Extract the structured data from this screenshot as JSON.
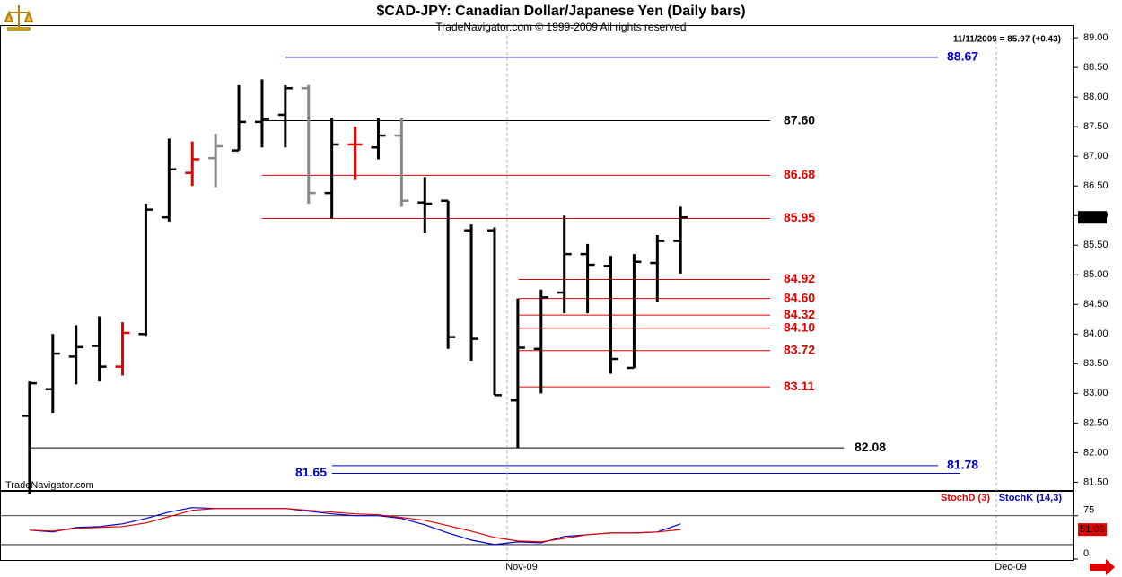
{
  "chart_data": [
    {
      "type": "ohlc",
      "title": "$CAD-JPY:  Canadian Dollar/Japanese Yen  (Daily bars)",
      "subtitle": "TradeNavigator.com © 1999-2009 All rights reserved",
      "watermark": "TradeNavigator.com",
      "quote": "11/11/2009 = 85.97 (+0.43)",
      "categories": [
        null,
        null,
        null,
        null,
        null,
        null,
        null,
        null,
        null,
        null,
        null,
        null,
        null,
        null,
        null,
        null,
        null,
        null,
        null,
        null,
        null,
        null,
        null,
        null,
        null,
        null,
        null,
        null,
        null
      ],
      "open": [
        82.62,
        83.07,
        83.62,
        83.8,
        83.45,
        84.0,
        85.97,
        86.72,
        86.97,
        87.1,
        87.58,
        87.7,
        88.15,
        86.38,
        87.2,
        87.15,
        87.35,
        86.22,
        86.25,
        85.75,
        85.75,
        82.88,
        83.75,
        84.7,
        85.35,
        85.15,
        83.43,
        85.2,
        85.57
      ],
      "high": [
        83.2,
        84.0,
        84.15,
        84.3,
        84.2,
        86.2,
        87.3,
        87.25,
        87.38,
        88.2,
        88.3,
        88.2,
        88.2,
        87.65,
        87.5,
        87.65,
        87.65,
        86.65,
        86.25,
        85.85,
        85.8,
        84.6,
        84.75,
        86.0,
        85.52,
        85.32,
        85.35,
        85.67,
        86.15
      ],
      "low": [
        81.3,
        82.67,
        83.15,
        83.2,
        83.3,
        83.97,
        85.9,
        86.5,
        86.48,
        87.1,
        87.15,
        87.15,
        86.2,
        85.95,
        86.6,
        86.95,
        86.15,
        85.7,
        83.75,
        83.55,
        82.97,
        82.08,
        83.0,
        84.35,
        84.35,
        83.33,
        83.43,
        84.55,
        85.02
      ],
      "close": [
        83.17,
        83.67,
        83.78,
        83.45,
        84.02,
        86.1,
        86.78,
        86.95,
        87.17,
        87.58,
        87.63,
        88.15,
        86.38,
        87.2,
        87.2,
        87.35,
        86.25,
        86.2,
        83.95,
        83.92,
        82.97,
        83.77,
        84.62,
        85.35,
        85.17,
        83.58,
        85.22,
        85.57,
        85.97
      ],
      "bar_colors": [
        "#000",
        "#000",
        "#000",
        "#000",
        "#e00000",
        "#000",
        "#000",
        "#e00000",
        "#888888",
        "#000",
        "#000",
        "#000",
        "#888888",
        "#000",
        "#e00000",
        "#000",
        "#888888",
        "#000",
        "#000",
        "#000",
        "#000",
        "#000",
        "#000",
        "#000",
        "#000",
        "#000",
        "#000",
        "#000",
        "#000"
      ],
      "xlim": [
        -1.27,
        44.9
      ],
      "ylim": [
        81.3,
        89.1
      ],
      "yticks": [
        {
          "value": 81.5,
          "label": "81.50"
        },
        {
          "value": 82,
          "label": "82.00"
        },
        {
          "value": 82.5,
          "label": "82.50"
        },
        {
          "value": 83,
          "label": "83.00"
        },
        {
          "value": 83.5,
          "label": "83.50"
        },
        {
          "value": 84,
          "label": "84.00"
        },
        {
          "value": 84.5,
          "label": "84.50"
        },
        {
          "value": 85,
          "label": "85.00"
        },
        {
          "value": 85.5,
          "label": "85.50"
        },
        {
          "value": 86,
          "label": "86.00"
        },
        {
          "value": 86.5,
          "label": "86.50"
        },
        {
          "value": 87,
          "label": "87.00"
        },
        {
          "value": 87.5,
          "label": "87.50"
        },
        {
          "value": 88,
          "label": "88.00"
        },
        {
          "value": 88.5,
          "label": "88.50"
        },
        {
          "value": 89,
          "label": "89.00"
        }
      ],
      "last_price": 85.97,
      "levels": {
        "values": [
          88.67,
          87.6,
          86.68,
          85.95,
          84.92,
          84.6,
          84.32,
          84.1,
          83.72,
          83.11,
          82.08,
          81.78,
          81.65
        ],
        "value_labels": [
          "88.67",
          "87.60",
          "86.68",
          "85.95",
          "84.92",
          "84.60",
          "84.32",
          "84.10",
          "83.72",
          "83.11",
          "82.08",
          "81.78",
          "81.65"
        ],
        "colors": [
          "#0000cc",
          "#000",
          "#e00000",
          "#e00000",
          "#e00000",
          "#e00000",
          "#e00000",
          "#e00000",
          "#e00000",
          "#e00000",
          "#000",
          "#0000cc",
          "#0000cc"
        ]
      }
    },
    {
      "type": "line",
      "categories": [
        null,
        null,
        null,
        null,
        null,
        null,
        null,
        null,
        null,
        null,
        null,
        null,
        null,
        null,
        null,
        null,
        null,
        null,
        null,
        null,
        null,
        null,
        null,
        null,
        null,
        null,
        null,
        null,
        null
      ],
      "series": [
        {
          "name": "StochD (3)",
          "color": "#e00000",
          "values": [
            50.0,
            48.4,
            53.1,
            54.7,
            56.3,
            62.5,
            73.4,
            84.4,
            87.5,
            87.5,
            87.5,
            87.5,
            84.4,
            81.3,
            78.1,
            76.6,
            71.9,
            67.2,
            57.8,
            48.4,
            37.5,
            31.3,
            29.7,
            35.9,
            42.2,
            45.3,
            45.3,
            46.9,
            51.09
          ]
        },
        {
          "name": "StochK (14,3)",
          "color": "#0000cc",
          "values": [
            50.0,
            46.9,
            54.7,
            56.3,
            60.9,
            70.3,
            81.3,
            89.1,
            87.5,
            87.5,
            87.5,
            87.5,
            82.8,
            78.1,
            75.0,
            75.0,
            70.3,
            59.4,
            45.3,
            32.8,
            25.0,
            29.7,
            28.1,
            39.1,
            42.2,
            45.3,
            45.3,
            46.9,
            60.9
          ]
        }
      ],
      "xlim": [
        -1.27,
        44.9
      ],
      "xticks": [
        {
          "value": 20.54,
          "label": "Nov-09"
        },
        {
          "value": 41.58,
          "label": "Dec-09"
        }
      ],
      "ylim": [
        0,
        115
      ],
      "yticks": [
        0,
        75
      ],
      "hlines": [
        25,
        75
      ]
    }
  ]
}
